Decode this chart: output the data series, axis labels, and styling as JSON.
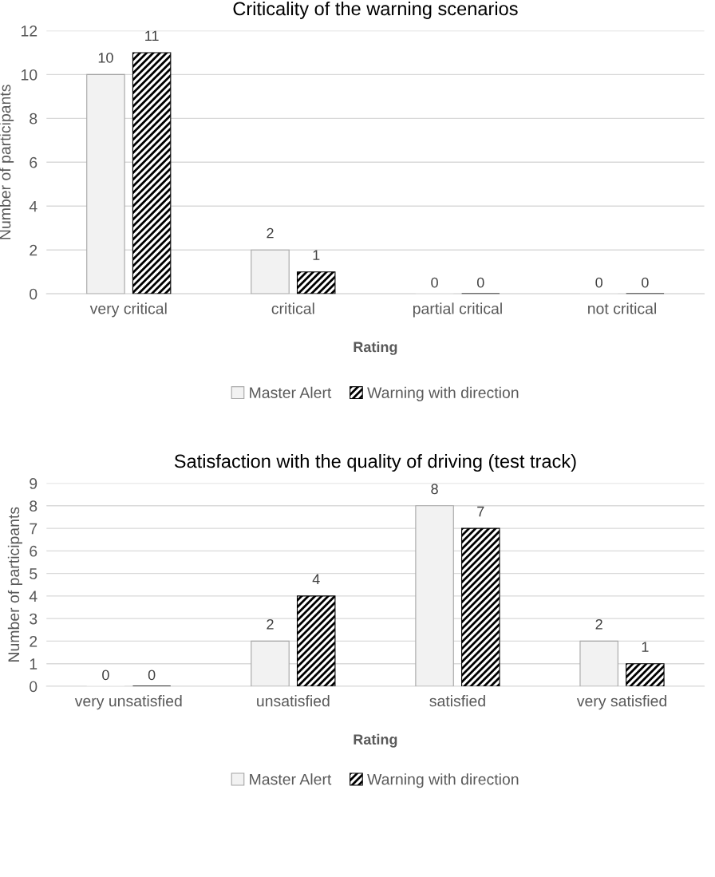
{
  "chart_data": [
    {
      "type": "bar",
      "title": "Criticality of the warning scenarios",
      "xlabel": "Rating",
      "ylabel": "Number of participants",
      "categories": [
        "very critical",
        "critical",
        "partial critical",
        "not critical"
      ],
      "series": [
        {
          "name": "Master Alert",
          "color": "#f2f2f2",
          "values": [
            10,
            2,
            0,
            0
          ]
        },
        {
          "name": "Warning with direction",
          "color": "#000000",
          "values": [
            11,
            1,
            0,
            0
          ]
        }
      ],
      "ylim": [
        0,
        12
      ],
      "yticks": [
        0,
        2,
        4,
        6,
        8,
        10,
        12
      ],
      "grid": "y",
      "legend": "bottom",
      "data_labels": true
    },
    {
      "type": "bar",
      "title": "Satisfaction with the quality of driving (test track)",
      "xlabel": "Rating",
      "ylabel": "Number of participants",
      "categories": [
        "very unsatisfied",
        "unsatisfied",
        "satisfied",
        "very satisfied"
      ],
      "series": [
        {
          "name": "Master Alert",
          "color": "#f2f2f2",
          "values": [
            0,
            2,
            8,
            2
          ]
        },
        {
          "name": "Warning with direction",
          "color": "#000000",
          "values": [
            0,
            4,
            7,
            1
          ]
        }
      ],
      "ylim": [
        0,
        9
      ],
      "yticks": [
        0,
        1,
        2,
        3,
        4,
        5,
        6,
        7,
        8,
        9
      ],
      "grid": "y",
      "legend": "bottom",
      "data_labels": true
    }
  ]
}
